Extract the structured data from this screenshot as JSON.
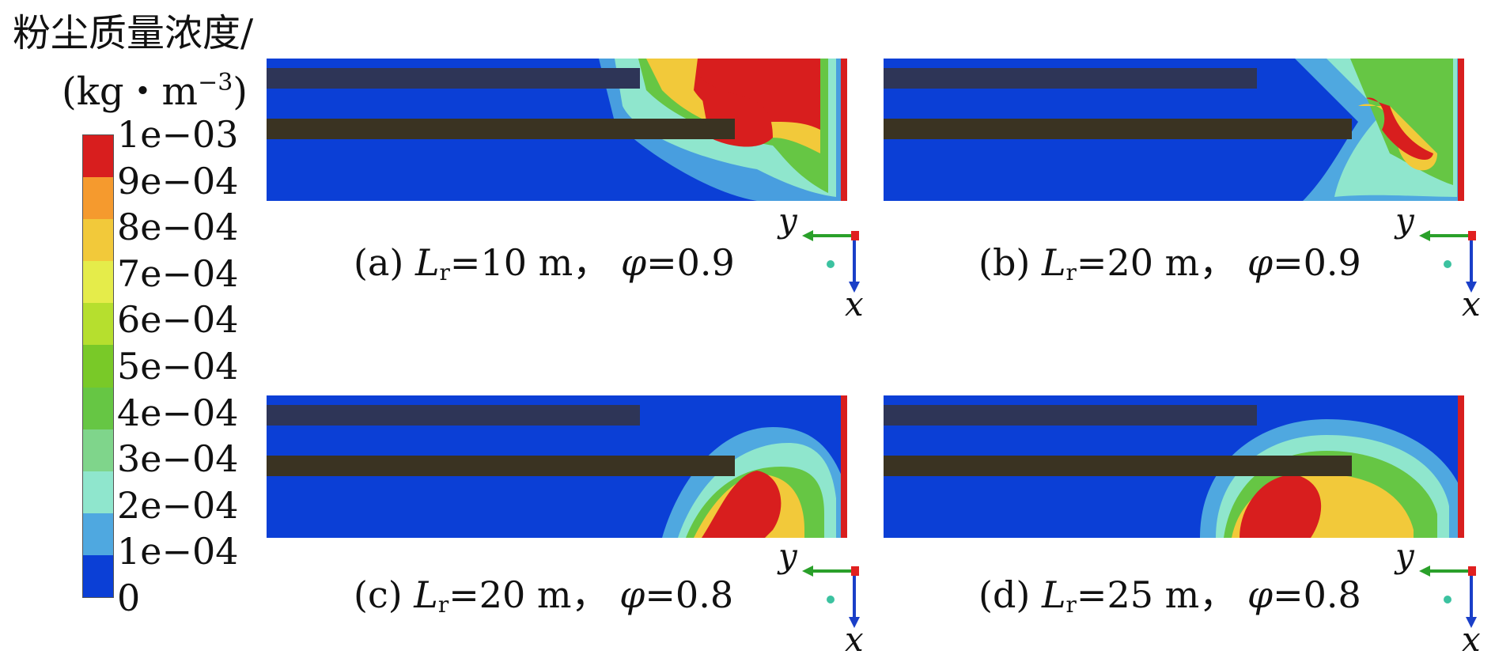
{
  "legend": {
    "title": "粉尘质量浓度/",
    "unit_prefix": "(kg・m",
    "unit_exp": "−3",
    "unit_suffix": ")",
    "colors": [
      "#d81e1e",
      "#f59a2e",
      "#f2c93a",
      "#e5ec4a",
      "#b6df2e",
      "#79c928",
      "#66c644",
      "#7fd58b",
      "#8fe6cd",
      "#4fa8e0",
      "#0b3fd6"
    ],
    "ticks": [
      "1e−03",
      "9e−04",
      "8e−04",
      "7e−04",
      "6e−04",
      "5e−04",
      "4e−04",
      "3e−04",
      "2e−04",
      "1e−04",
      "0"
    ]
  },
  "panels": [
    {
      "id": "a",
      "label": "(a)",
      "L_sym": "L",
      "L_sub": "r",
      "L_val": "=10 m，",
      "phi_sym": "φ",
      "phi_val": "=0.9"
    },
    {
      "id": "b",
      "label": "(b)",
      "L_sym": "L",
      "L_sub": "r",
      "L_val": "=20 m，",
      "phi_sym": "φ",
      "phi_val": "=0.9"
    },
    {
      "id": "c",
      "label": "(c)",
      "L_sym": "L",
      "L_sub": "r",
      "L_val": "=20 m，",
      "phi_sym": "φ",
      "phi_val": "=0.8"
    },
    {
      "id": "d",
      "label": "(d)",
      "L_sym": "L",
      "L_sub": "r",
      "L_val": "=25 m，",
      "phi_sym": "φ",
      "phi_val": "=0.8"
    }
  ],
  "axes": {
    "y_label": "y",
    "x_label": "x"
  },
  "colors": {
    "background_field": "#0b3fd6",
    "duct": "#2e3557",
    "machine": "#3a3322",
    "arrow_green": "#2aa02a",
    "arrow_blue": "#1a3fc8",
    "origin_red": "#e02020"
  }
}
